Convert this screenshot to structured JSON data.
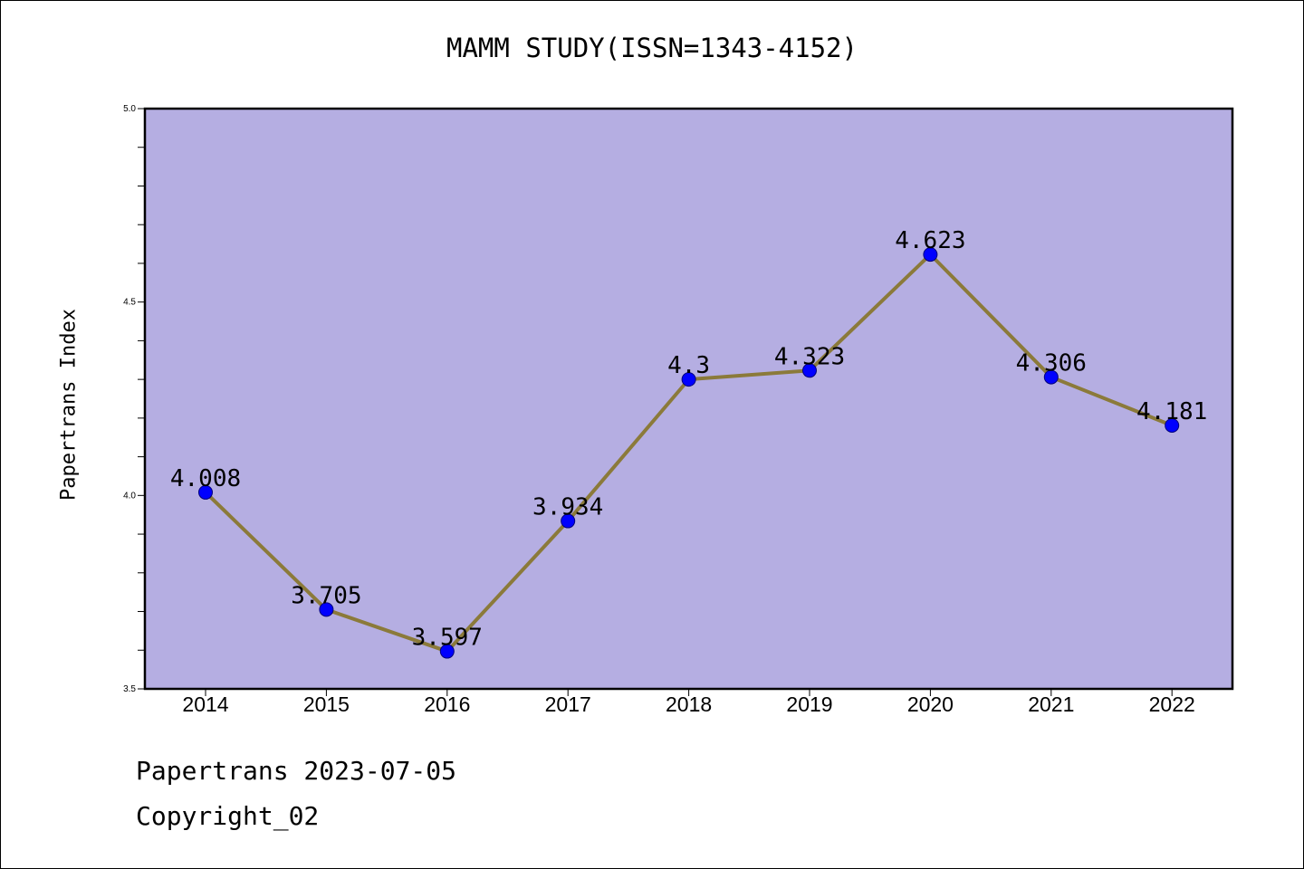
{
  "title": "MAMM STUDY(ISSN=1343-4152)",
  "footer": {
    "line1": "Papertrans 2023-07-05",
    "line2": "Copyright_02"
  },
  "colors": {
    "plot_bg": "#b5aee2",
    "line": "#8b7a3a",
    "marker": "#0000ff"
  },
  "chart_data": {
    "type": "line",
    "title": "MAMM STUDY(ISSN=1343-4152)",
    "xlabel": "",
    "ylabel": "Papertrans Index",
    "categories": [
      "2014",
      "2015",
      "2016",
      "2017",
      "2018",
      "2019",
      "2020",
      "2021",
      "2022"
    ],
    "series": [
      {
        "values": [
          4.008,
          3.705,
          3.597,
          3.934,
          4.3,
          4.323,
          4.623,
          4.306,
          4.181
        ],
        "labels": [
          "4.008",
          "3.705",
          "3.597",
          "3.934",
          "4.3",
          "4.323",
          "4.623",
          "4.306",
          "4.181"
        ]
      }
    ],
    "ylim": [
      3.5,
      5.0
    ],
    "yticks": [
      "3.5",
      "4.0",
      "4.5",
      "5.0"
    ],
    "grid": false,
    "legend": "none"
  }
}
